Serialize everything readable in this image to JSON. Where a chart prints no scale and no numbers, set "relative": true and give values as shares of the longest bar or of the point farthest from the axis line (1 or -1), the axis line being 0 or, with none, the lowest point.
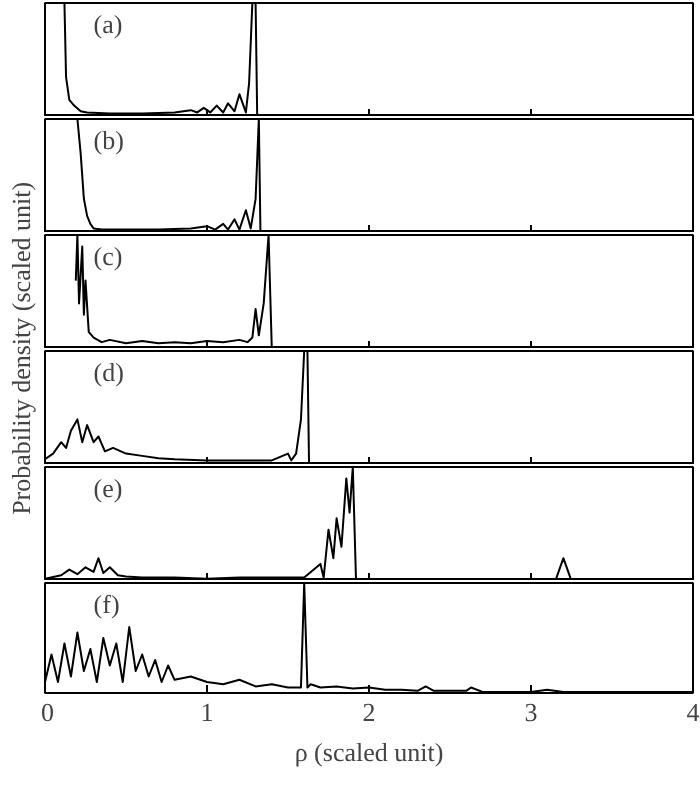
{
  "chart_data": [
    {
      "type": "line",
      "relative": true,
      "ylabel": "Probability density (scaled unit)",
      "annotations": [
        "(a)"
      ],
      "xlim": [
        0,
        4
      ],
      "xticks": [
        0,
        1,
        2,
        3,
        4
      ],
      "tick_labels": false,
      "color": "#000000",
      "x": [
        0.12,
        0.13,
        0.15,
        0.18,
        0.22,
        0.26,
        0.4,
        0.6,
        0.8,
        0.9,
        0.94,
        0.98,
        1.02,
        1.06,
        1.1,
        1.13,
        1.17,
        1.2,
        1.24,
        1.26,
        1.28,
        1.29,
        1.3,
        1.31,
        4
      ],
      "values": [
        1,
        0.35,
        0.15,
        0.1,
        0.05,
        0.04,
        0.03,
        0.03,
        0.04,
        0.06,
        0.04,
        0.08,
        0.04,
        0.1,
        0.04,
        0.12,
        0.05,
        0.2,
        0.04,
        0.3,
        1,
        1,
        1,
        0,
        0
      ]
    },
    {
      "type": "line",
      "relative": true,
      "annotations": [
        "(b)"
      ],
      "xlim": [
        0,
        4
      ],
      "xticks": [
        0,
        1,
        2,
        3,
        4
      ],
      "tick_labels": false,
      "color": "#000000",
      "x": [
        0.2,
        0.22,
        0.24,
        0.26,
        0.28,
        0.3,
        0.35,
        0.5,
        0.7,
        0.9,
        1.0,
        1.05,
        1.1,
        1.13,
        1.17,
        1.2,
        1.24,
        1.27,
        1.3,
        1.32,
        1.33,
        4
      ],
      "values": [
        1,
        0.7,
        0.3,
        0.15,
        0.08,
        0.04,
        0.03,
        0.03,
        0.03,
        0.04,
        0.06,
        0.03,
        0.08,
        0.03,
        0.12,
        0.03,
        0.2,
        0.04,
        0.3,
        1,
        0,
        0
      ]
    },
    {
      "type": "line",
      "relative": true,
      "annotations": [
        "(c)"
      ],
      "xlim": [
        0,
        4
      ],
      "xticks": [
        0,
        1,
        2,
        3,
        4
      ],
      "tick_labels": false,
      "color": "#000000",
      "x": [
        0.19,
        0.2,
        0.21,
        0.23,
        0.24,
        0.25,
        0.27,
        0.3,
        0.35,
        0.4,
        0.5,
        0.6,
        0.7,
        0.8,
        0.9,
        1.0,
        1.1,
        1.2,
        1.25,
        1.28,
        1.3,
        1.32,
        1.35,
        1.38,
        1.4,
        4
      ],
      "values": [
        0.6,
        1,
        0.4,
        0.9,
        0.3,
        0.6,
        0.15,
        0.1,
        0.06,
        0.08,
        0.05,
        0.07,
        0.05,
        0.06,
        0.05,
        0.07,
        0.06,
        0.08,
        0.06,
        0.1,
        0.35,
        0.12,
        0.4,
        1,
        0,
        0
      ]
    },
    {
      "type": "line",
      "relative": true,
      "annotations": [
        "(d)"
      ],
      "xlim": [
        0,
        4
      ],
      "xticks": [
        0,
        1,
        2,
        3,
        4
      ],
      "tick_labels": false,
      "color": "#000000",
      "x": [
        0.0,
        0.05,
        0.1,
        0.13,
        0.16,
        0.2,
        0.23,
        0.26,
        0.3,
        0.33,
        0.37,
        0.42,
        0.5,
        0.6,
        0.7,
        0.8,
        1.0,
        1.2,
        1.4,
        1.5,
        1.52,
        1.55,
        1.58,
        1.6,
        1.62,
        1.63,
        4
      ],
      "values": [
        0.05,
        0.1,
        0.2,
        0.15,
        0.3,
        0.4,
        0.2,
        0.35,
        0.2,
        0.25,
        0.12,
        0.15,
        0.1,
        0.08,
        0.06,
        0.05,
        0.04,
        0.04,
        0.04,
        0.1,
        0.04,
        0.1,
        0.4,
        1,
        1,
        0,
        0
      ]
    },
    {
      "type": "line",
      "relative": true,
      "annotations": [
        "(e)"
      ],
      "xlim": [
        0,
        4
      ],
      "xticks": [
        0,
        1,
        2,
        3,
        4
      ],
      "tick_labels": false,
      "color": "#000000",
      "x": [
        0.0,
        0.1,
        0.15,
        0.2,
        0.25,
        0.3,
        0.33,
        0.36,
        0.4,
        0.45,
        0.5,
        0.6,
        0.8,
        1.0,
        1.2,
        1.4,
        1.6,
        1.7,
        1.72,
        1.75,
        1.78,
        1.8,
        1.83,
        1.86,
        1.88,
        1.9,
        1.92,
        3.15,
        3.2,
        3.25,
        4
      ],
      "values": [
        0.02,
        0.05,
        0.1,
        0.06,
        0.12,
        0.08,
        0.2,
        0.07,
        0.12,
        0.05,
        0.04,
        0.03,
        0.03,
        0.02,
        0.03,
        0.03,
        0.03,
        0.15,
        0.03,
        0.45,
        0.2,
        0.55,
        0.3,
        0.9,
        0.6,
        1,
        0,
        0,
        0.2,
        0,
        0
      ]
    },
    {
      "type": "line",
      "relative": true,
      "annotations": [
        "(f)"
      ],
      "xlim": [
        0,
        4
      ],
      "xticks": [
        0,
        1,
        2,
        3,
        4
      ],
      "tick_labels": "x",
      "xlabel": "ρ (scaled unit)",
      "color": "#000000",
      "x": [
        0.0,
        0.04,
        0.08,
        0.12,
        0.16,
        0.2,
        0.24,
        0.28,
        0.32,
        0.36,
        0.4,
        0.44,
        0.48,
        0.52,
        0.56,
        0.6,
        0.64,
        0.68,
        0.72,
        0.76,
        0.8,
        0.9,
        1.0,
        1.1,
        1.2,
        1.3,
        1.4,
        1.5,
        1.58,
        1.6,
        1.62,
        1.64,
        1.7,
        1.8,
        1.9,
        2.0,
        2.1,
        2.2,
        2.3,
        2.35,
        2.4,
        2.6,
        2.63,
        2.7,
        3.0,
        3.1,
        3.2,
        4
      ],
      "values": [
        0.1,
        0.35,
        0.1,
        0.45,
        0.15,
        0.55,
        0.2,
        0.4,
        0.1,
        0.5,
        0.25,
        0.45,
        0.1,
        0.6,
        0.2,
        0.35,
        0.15,
        0.3,
        0.1,
        0.25,
        0.12,
        0.15,
        0.1,
        0.08,
        0.12,
        0.06,
        0.08,
        0.05,
        0.05,
        1,
        0.05,
        0.08,
        0.05,
        0.06,
        0.04,
        0.05,
        0.03,
        0.03,
        0.02,
        0.06,
        0.02,
        0.02,
        0.05,
        0.01,
        0.01,
        0.03,
        0.01,
        0.01
      ]
    }
  ]
}
